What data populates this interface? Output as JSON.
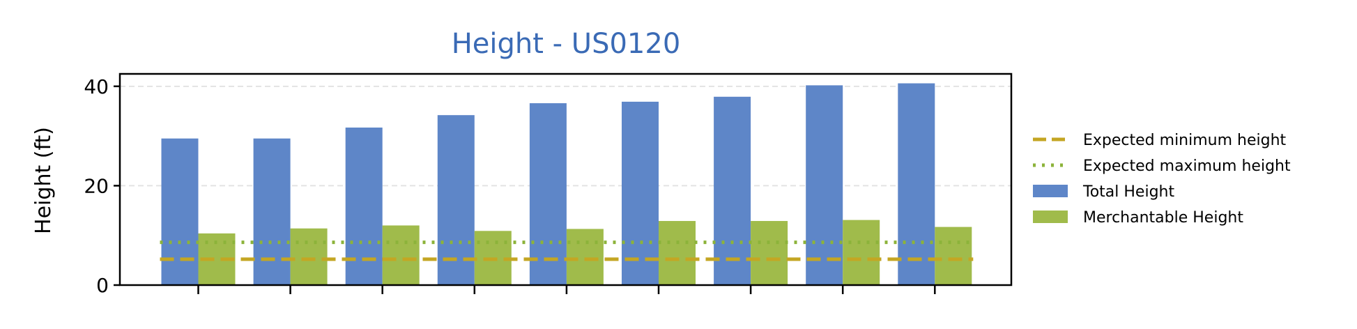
{
  "chart_data": {
    "type": "bar",
    "title": "Height - US0120",
    "xlabel": "",
    "ylabel": "Height (ft)",
    "ylim": [
      0,
      42.5
    ],
    "yticks": [
      0,
      20,
      40
    ],
    "categories": [
      "",
      "",
      "",
      "",
      "",
      "",
      "",
      "",
      ""
    ],
    "grid": "y-dashed",
    "legend_position": "right",
    "series": [
      {
        "name": "Total Height",
        "color": "#5e86c8",
        "values": [
          29.5,
          29.5,
          31.7,
          34.2,
          36.6,
          36.9,
          37.9,
          40.2,
          40.6
        ]
      },
      {
        "name": "Merchantable Height",
        "color": "#a0bb4b",
        "values": [
          10.4,
          11.4,
          12.0,
          10.9,
          11.3,
          12.9,
          12.9,
          13.1,
          11.7
        ]
      }
    ],
    "reference_lines": [
      {
        "name": "Expected minimum height",
        "value": 5.2,
        "style": "dashed",
        "color": "#c4a623"
      },
      {
        "name": "Expected maximum height",
        "value": 8.6,
        "style": "dotted",
        "color": "#8cb33a"
      }
    ]
  }
}
